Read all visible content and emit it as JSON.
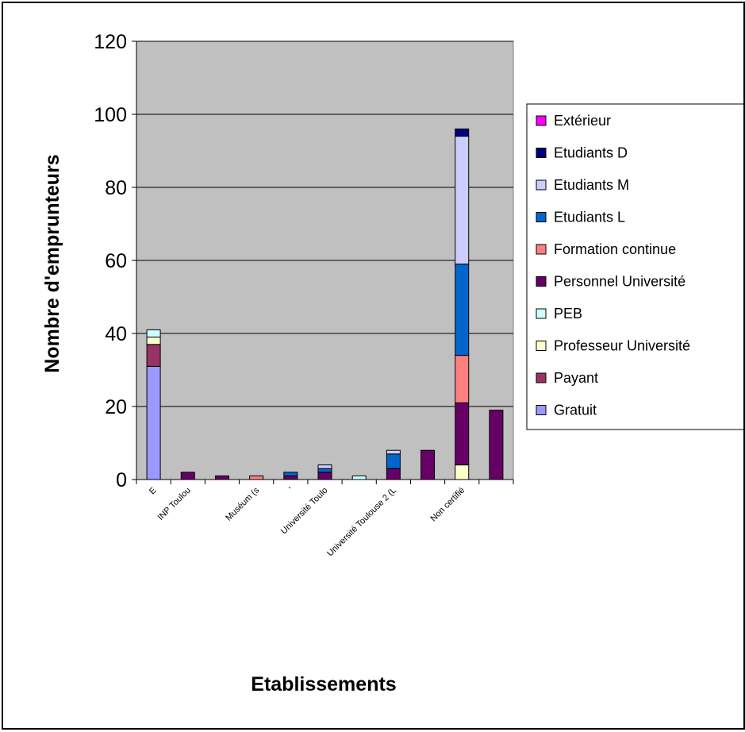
{
  "chart_data": {
    "type": "bar",
    "stacked": true,
    "title": "",
    "xlabel": "Etablissements",
    "ylabel": "Nombre d'emprunteurs",
    "ylim": [
      0,
      120
    ],
    "yticks": [
      0,
      20,
      40,
      60,
      80,
      100,
      120
    ],
    "grid": true,
    "legend_position": "right",
    "plot_background": "#c0c0c0",
    "categories": [
      "E",
      "INP Toulou",
      "",
      "Muséum (s",
      "",
      "Université Toulo",
      "",
      "Université Toulouse 2 (L",
      "",
      "Non certifié",
      ""
    ],
    "tick_labels": [
      {
        "text": "E",
        "slot": 0
      },
      {
        "text": "INP Toulou",
        "slot": 1
      },
      {
        "text": "Muséum (s",
        "slot": 3
      },
      {
        "text": "'",
        "slot": 4
      },
      {
        "text": "Université Toulo",
        "slot": 5
      },
      {
        "text": "Université Toulouse 2 (L",
        "slot": 7
      },
      {
        "text": "Non certifié",
        "slot": 9
      }
    ],
    "series": [
      {
        "name": "Gratuit",
        "color": "#9999ff",
        "values": [
          31,
          0,
          0,
          0,
          0,
          0,
          0,
          0,
          0,
          0,
          0
        ]
      },
      {
        "name": "Payant",
        "color": "#993366",
        "values": [
          6,
          0,
          0,
          0,
          0,
          0,
          0,
          0,
          0,
          0,
          0
        ]
      },
      {
        "name": "Professeur Université",
        "color": "#ffffcc",
        "values": [
          2,
          0,
          0,
          0,
          0,
          0,
          0,
          0,
          0,
          4,
          0
        ]
      },
      {
        "name": "PEB",
        "color": "#ccffff",
        "values": [
          2,
          0,
          0,
          0,
          0,
          0,
          1,
          0,
          0,
          0,
          0
        ]
      },
      {
        "name": "Personnel Université",
        "color": "#660066",
        "values": [
          0,
          2,
          1,
          0,
          1,
          2,
          0,
          3,
          8,
          17,
          19
        ]
      },
      {
        "name": "Formation continue",
        "color": "#ff8080",
        "values": [
          0,
          0,
          0,
          1,
          0,
          0,
          0,
          0,
          0,
          13,
          0
        ]
      },
      {
        "name": "Etudiants L",
        "color": "#0066cc",
        "values": [
          0,
          0,
          0,
          0,
          1,
          1,
          0,
          4,
          0,
          25,
          0
        ]
      },
      {
        "name": "Etudiants M",
        "color": "#ccccff",
        "values": [
          0,
          0,
          0,
          0,
          0,
          1,
          0,
          1,
          0,
          35,
          0
        ]
      },
      {
        "name": "Etudiants D",
        "color": "#000080",
        "values": [
          0,
          0,
          0,
          0,
          0,
          0,
          0,
          0,
          0,
          2,
          0
        ]
      },
      {
        "name": "Extérieur",
        "color": "#ff00ff",
        "values": [
          0,
          0,
          0,
          0,
          0,
          0,
          0,
          0,
          0,
          0,
          0
        ]
      }
    ]
  }
}
